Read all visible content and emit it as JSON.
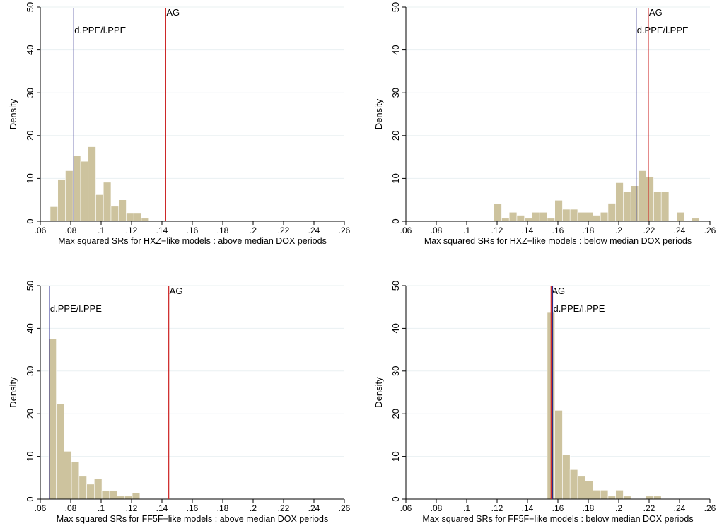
{
  "chart_data": [
    {
      "type": "histogram",
      "xlabel": "Max squared SRs for HXZ−like models : above median DOX periods",
      "ylabel": "Density",
      "xlim": [
        0.06,
        0.26
      ],
      "ylim": [
        0,
        50
      ],
      "xticks": [
        ".06",
        ".08",
        ".1",
        ".12",
        ".14",
        ".16",
        ".18",
        ".2",
        ".22",
        ".24",
        ".26"
      ],
      "yticks": [
        "0",
        "10",
        "20",
        "30",
        "40",
        "50"
      ],
      "bin_width": 0.005,
      "bins": [
        {
          "x0": 0.0665,
          "density": 3.4
        },
        {
          "x0": 0.0715,
          "density": 9.8
        },
        {
          "x0": 0.0765,
          "density": 11.8
        },
        {
          "x0": 0.0815,
          "density": 15.3
        },
        {
          "x0": 0.0865,
          "density": 14.0
        },
        {
          "x0": 0.0915,
          "density": 17.4
        },
        {
          "x0": 0.0965,
          "density": 6.2
        },
        {
          "x0": 0.1015,
          "density": 9.1
        },
        {
          "x0": 0.1065,
          "density": 3.5
        },
        {
          "x0": 0.1115,
          "density": 5.0
        },
        {
          "x0": 0.1165,
          "density": 2.0
        },
        {
          "x0": 0.1215,
          "density": 2.0
        },
        {
          "x0": 0.1265,
          "density": 0.7
        }
      ],
      "reference_lines": [
        {
          "label": "d.PPE/l.PPE",
          "x": 0.082,
          "color": "#2a2a8c",
          "label_row": 2
        },
        {
          "label": "AG",
          "x": 0.1425,
          "color": "#cc2222",
          "label_row": 1
        }
      ]
    },
    {
      "type": "histogram",
      "xlabel": "Max squared SRs for HXZ−like models : below median DOX periods",
      "ylabel": "Density",
      "xlim": [
        0.06,
        0.26
      ],
      "ylim": [
        0,
        50
      ],
      "xticks": [
        ".06",
        ".08",
        ".1",
        ".12",
        ".14",
        ".16",
        ".18",
        ".2",
        ".22",
        ".24",
        ".26"
      ],
      "yticks": [
        "0",
        "10",
        "20",
        "30",
        "40",
        "50"
      ],
      "bin_width": 0.005,
      "bins": [
        {
          "x0": 0.118,
          "density": 4.1
        },
        {
          "x0": 0.123,
          "density": 0.7
        },
        {
          "x0": 0.128,
          "density": 2.1
        },
        {
          "x0": 0.133,
          "density": 1.4
        },
        {
          "x0": 0.138,
          "density": 0.7
        },
        {
          "x0": 0.143,
          "density": 2.1
        },
        {
          "x0": 0.148,
          "density": 2.1
        },
        {
          "x0": 0.153,
          "density": 0.7
        },
        {
          "x0": 0.158,
          "density": 4.9
        },
        {
          "x0": 0.163,
          "density": 2.8
        },
        {
          "x0": 0.168,
          "density": 2.8
        },
        {
          "x0": 0.173,
          "density": 2.1
        },
        {
          "x0": 0.178,
          "density": 2.1
        },
        {
          "x0": 0.183,
          "density": 1.4
        },
        {
          "x0": 0.188,
          "density": 2.1
        },
        {
          "x0": 0.193,
          "density": 4.2
        },
        {
          "x0": 0.198,
          "density": 9.0
        },
        {
          "x0": 0.203,
          "density": 6.9
        },
        {
          "x0": 0.208,
          "density": 8.3
        },
        {
          "x0": 0.213,
          "density": 11.8
        },
        {
          "x0": 0.218,
          "density": 10.4
        },
        {
          "x0": 0.223,
          "density": 6.9
        },
        {
          "x0": 0.228,
          "density": 6.9
        },
        {
          "x0": 0.233,
          "density": 0
        },
        {
          "x0": 0.238,
          "density": 2.1
        },
        {
          "x0": 0.243,
          "density": 0
        },
        {
          "x0": 0.248,
          "density": 0.7
        }
      ],
      "reference_lines": [
        {
          "label": "d.PPE/l.PPE",
          "x": 0.2115,
          "color": "#2a2a8c",
          "label_row": 2
        },
        {
          "label": "AG",
          "x": 0.2195,
          "color": "#cc2222",
          "label_row": 1
        }
      ]
    },
    {
      "type": "histogram",
      "xlabel": "Max squared SRs for FF5F−like models : above median DOX periods",
      "ylabel": "Density",
      "xlim": [
        0.06,
        0.26
      ],
      "ylim": [
        0,
        50
      ],
      "xticks": [
        ".06",
        ".08",
        ".1",
        ".12",
        ".14",
        ".16",
        ".18",
        ".2",
        ".22",
        ".24",
        ".26"
      ],
      "yticks": [
        "0",
        "10",
        "20",
        "30",
        "40",
        "50"
      ],
      "bin_width": 0.005,
      "bins": [
        {
          "x0": 0.0655,
          "density": 37.5
        },
        {
          "x0": 0.0705,
          "density": 22.3
        },
        {
          "x0": 0.0755,
          "density": 11.2
        },
        {
          "x0": 0.0805,
          "density": 8.8
        },
        {
          "x0": 0.0855,
          "density": 5.5
        },
        {
          "x0": 0.0905,
          "density": 3.5
        },
        {
          "x0": 0.0955,
          "density": 4.8
        },
        {
          "x0": 0.1005,
          "density": 2.0
        },
        {
          "x0": 0.1055,
          "density": 2.0
        },
        {
          "x0": 0.1105,
          "density": 0.7
        },
        {
          "x0": 0.1155,
          "density": 0.7
        },
        {
          "x0": 0.1205,
          "density": 1.4
        }
      ],
      "reference_lines": [
        {
          "label": "d.PPE/l.PPE",
          "x": 0.066,
          "color": "#2a2a8c",
          "label_row": 2
        },
        {
          "label": "AG",
          "x": 0.1445,
          "color": "#cc2222",
          "label_row": 1
        }
      ]
    },
    {
      "type": "histogram",
      "xlabel": "Max squared SRs for FF5F−like models : below median DOX periods",
      "ylabel": "Density",
      "xlim": [
        0.06,
        0.26
      ],
      "ylim": [
        0,
        50
      ],
      "xticks": [
        ".06",
        ".08",
        ".1",
        ".12",
        ".14",
        ".16",
        ".18",
        ".2",
        ".22",
        ".24",
        ".26"
      ],
      "yticks": [
        "0",
        "10",
        "20",
        "30",
        "40",
        "50"
      ],
      "bin_width": 0.005,
      "bins": [
        {
          "x0": 0.153,
          "density": 43.7
        },
        {
          "x0": 0.158,
          "density": 20.8
        },
        {
          "x0": 0.163,
          "density": 10.4
        },
        {
          "x0": 0.168,
          "density": 6.9
        },
        {
          "x0": 0.173,
          "density": 5.5
        },
        {
          "x0": 0.178,
          "density": 4.2
        },
        {
          "x0": 0.183,
          "density": 2.1
        },
        {
          "x0": 0.188,
          "density": 2.1
        },
        {
          "x0": 0.193,
          "density": 0.7
        },
        {
          "x0": 0.198,
          "density": 2.1
        },
        {
          "x0": 0.203,
          "density": 0.7
        },
        {
          "x0": 0.208,
          "density": 0
        },
        {
          "x0": 0.213,
          "density": 0
        },
        {
          "x0": 0.218,
          "density": 0.7
        },
        {
          "x0": 0.223,
          "density": 0.7
        }
      ],
      "reference_lines": [
        {
          "label": "AG",
          "x": 0.1555,
          "color": "#cc2222",
          "label_row": 1
        },
        {
          "label": "d.PPE/l.PPE",
          "x": 0.1565,
          "color": "#2a2a8c",
          "label_row": 2
        }
      ]
    }
  ],
  "colors": {
    "bar_fill": "#cdc39e",
    "bar_stroke": "#ffffff",
    "grid": "#eaf0f2",
    "axis": "#000000"
  }
}
